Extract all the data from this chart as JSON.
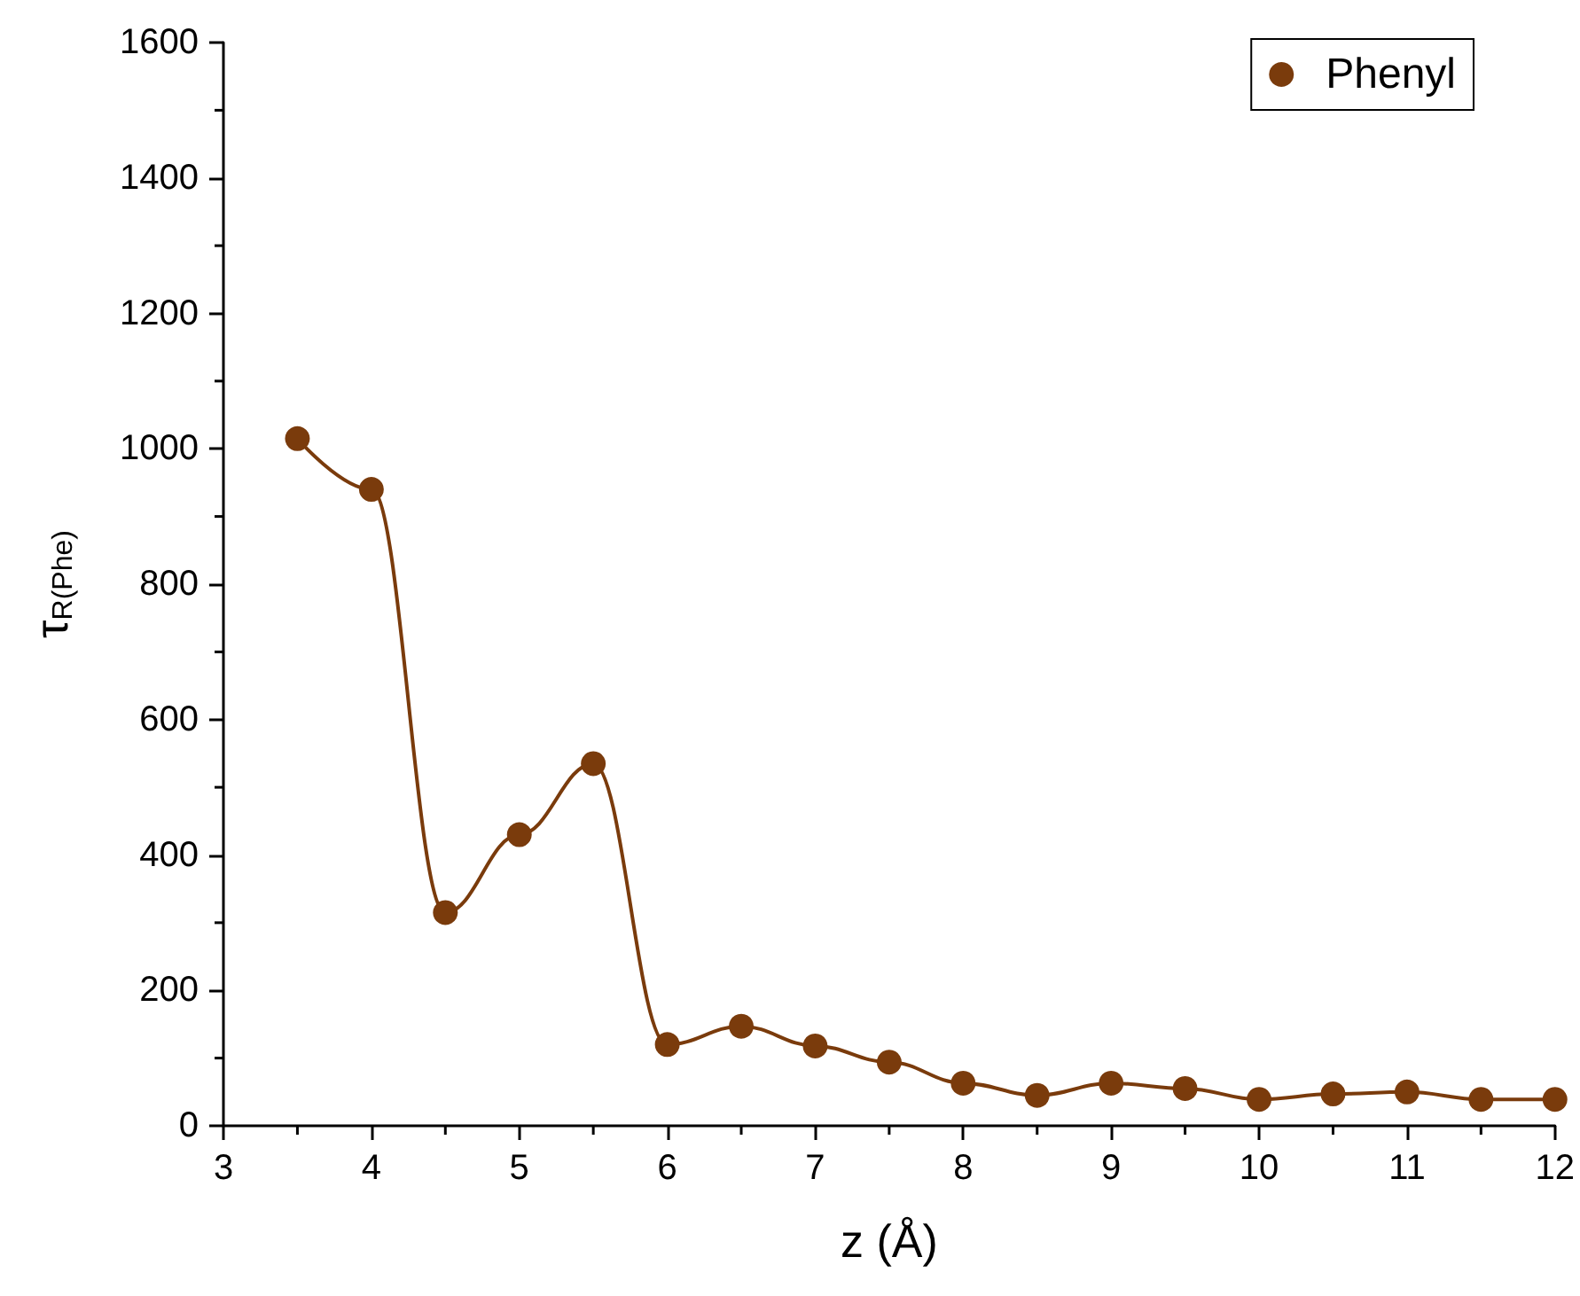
{
  "chart_data": {
    "type": "line",
    "xlabel": "z (Å)",
    "ylabel": "τ$_{R(Phe)}$",
    "x": [
      3.5,
      4,
      4.5,
      5,
      5.5,
      6,
      6.5,
      7,
      7.5,
      8,
      8.5,
      9,
      9.5,
      10,
      10.5,
      11,
      11.5,
      12
    ],
    "series": [
      {
        "name": "Phenyl",
        "color": "#7a3b0c",
        "values": [
          1015,
          940,
          315,
          430,
          535,
          120,
          147,
          118,
          94,
          63,
          45,
          63,
          55,
          39,
          47,
          50,
          39,
          39
        ]
      }
    ],
    "xlim": [
      3,
      12
    ],
    "xticks": [
      3,
      4,
      5,
      6,
      7,
      8,
      9,
      10,
      11,
      12
    ],
    "ylim": [
      0,
      1600
    ],
    "yticks": [
      0,
      200,
      400,
      600,
      800,
      1000,
      1200,
      1400,
      1600
    ],
    "grid": false,
    "legend": "top right",
    "marker": "circle",
    "line_style": "solid"
  }
}
